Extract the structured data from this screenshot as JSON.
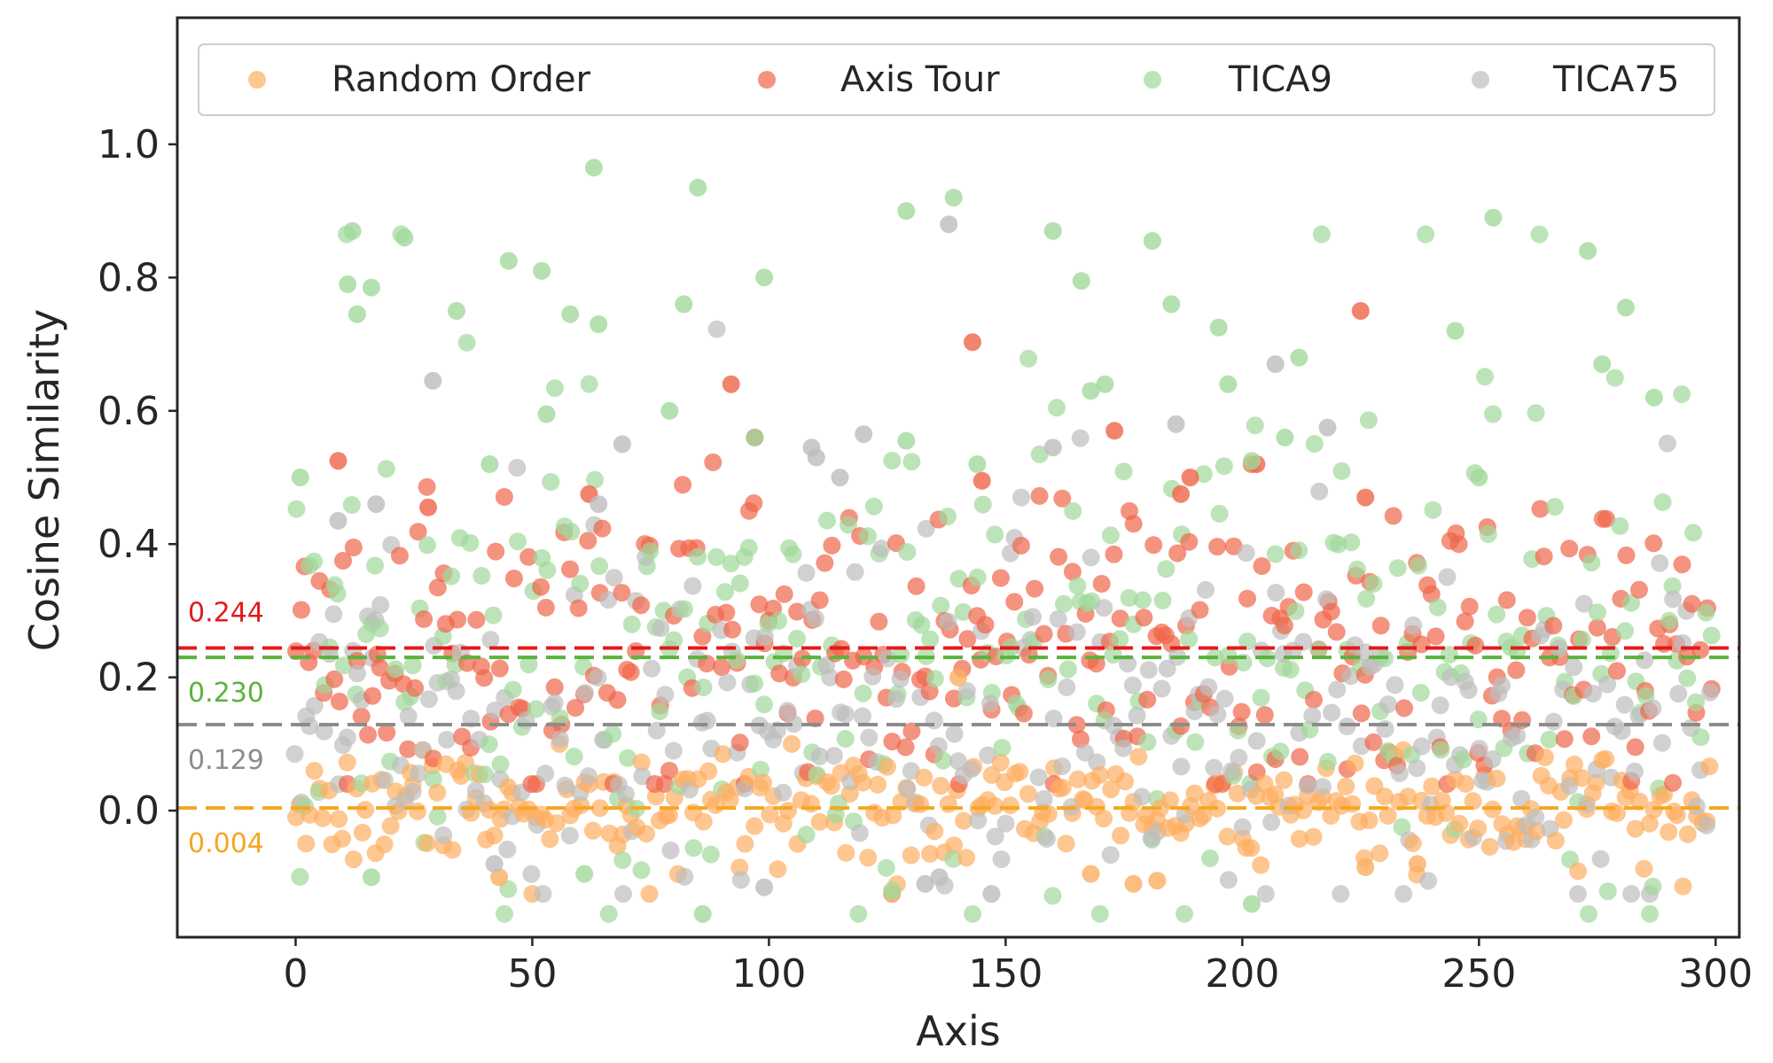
{
  "chart_data": {
    "type": "scatter",
    "xlabel": "Axis",
    "ylabel": "Cosine Similarity",
    "xlim": [
      -25,
      305
    ],
    "ylim": [
      -0.19,
      1.19
    ],
    "x_ticks": [
      0,
      50,
      100,
      150,
      200,
      250,
      300
    ],
    "x_tick_labels": [
      "0",
      "50",
      "100",
      "150",
      "200",
      "250",
      "300"
    ],
    "y_ticks": [
      0.0,
      0.2,
      0.4,
      0.6,
      0.8,
      1.0
    ],
    "y_tick_labels": [
      "0.0",
      "0.2",
      "0.4",
      "0.6",
      "0.8",
      "1.0"
    ],
    "grid": false,
    "legend_position": "top",
    "n_points_per_series": 300,
    "series": [
      {
        "name": "Random Order",
        "color": "#fdae61",
        "mean_label": "0.004",
        "mean": 0.004,
        "spread": {
          "min": -0.125,
          "max": 0.2
        },
        "highlight_points": [
          [
            140,
            0.2
          ],
          [
            126,
            -0.125
          ],
          [
            177,
            -0.11
          ],
          [
            182,
            -0.105
          ],
          [
            43,
            -0.1
          ],
          [
            226,
            -0.085
          ],
          [
            168,
            -0.095
          ],
          [
            237,
            -0.08
          ]
        ]
      },
      {
        "name": "Axis Tour",
        "color": "#ef6548",
        "mean_label": "0.244",
        "mean": 0.244,
        "spread": {
          "min": 0.04,
          "max": 0.75
        },
        "highlight_points": [
          [
            225,
            0.75
          ],
          [
            143,
            0.703
          ],
          [
            92,
            0.64
          ],
          [
            173,
            0.57
          ],
          [
            97,
            0.56
          ],
          [
            9,
            0.525
          ],
          [
            203,
            0.52
          ],
          [
            145,
            0.495
          ],
          [
            189,
            0.5
          ],
          [
            62,
            0.475
          ],
          [
            187,
            0.475
          ],
          [
            226,
            0.47
          ],
          [
            28,
            0.455
          ]
        ]
      },
      {
        "name": "TICA9",
        "color": "#a1d99b",
        "mean_label": "0.230",
        "mean": 0.23,
        "spread": {
          "min": -0.155,
          "max": 0.965
        },
        "highlight_points": [
          [
            63,
            0.965
          ],
          [
            85,
            0.935
          ],
          [
            139,
            0.92
          ],
          [
            129,
            0.9
          ],
          [
            253,
            0.89
          ],
          [
            12,
            0.87
          ],
          [
            160,
            0.87
          ],
          [
            23,
            0.86
          ],
          [
            181,
            0.855
          ],
          [
            273,
            0.84
          ],
          [
            45,
            0.825
          ],
          [
            52,
            0.81
          ],
          [
            99,
            0.8
          ],
          [
            166,
            0.795
          ],
          [
            11,
            0.79
          ],
          [
            16,
            0.785
          ],
          [
            185,
            0.76
          ],
          [
            82,
            0.76
          ],
          [
            281,
            0.755
          ],
          [
            34,
            0.75
          ],
          [
            13,
            0.745
          ],
          [
            58,
            0.745
          ],
          [
            64,
            0.73
          ],
          [
            195,
            0.725
          ],
          [
            245,
            0.72
          ],
          [
            212,
            0.68
          ],
          [
            276,
            0.67
          ],
          [
            197,
            0.64
          ],
          [
            171,
            0.64
          ],
          [
            168,
            0.63
          ],
          [
            287,
            0.62
          ],
          [
            79,
            0.6
          ],
          [
            53,
            0.595
          ],
          [
            129,
            0.555
          ],
          [
            209,
            0.56
          ],
          [
            97,
            0.56
          ],
          [
            1,
            0.5
          ],
          [
            41,
            0.52
          ],
          [
            144,
            0.52
          ],
          [
            202,
            0.525
          ],
          [
            250,
            0.5
          ],
          [
            86,
            -0.155
          ],
          [
            202,
            -0.14
          ],
          [
            126,
            -0.12
          ],
          [
            16,
            -0.1
          ],
          [
            61,
            -0.095
          ]
        ]
      },
      {
        "name": "TICA75",
        "color": "#bdbdbd",
        "mean_label": "0.129",
        "mean": 0.129,
        "spread": {
          "min": -0.125,
          "max": 0.88
        },
        "highlight_points": [
          [
            138,
            0.88
          ],
          [
            207,
            0.67
          ],
          [
            29,
            0.645
          ],
          [
            186,
            0.58
          ],
          [
            218,
            0.575
          ],
          [
            120,
            0.565
          ],
          [
            160,
            0.545
          ],
          [
            69,
            0.55
          ],
          [
            109,
            0.545
          ],
          [
            110,
            0.53
          ],
          [
            115,
            0.5
          ],
          [
            17,
            0.46
          ],
          [
            64,
            0.46
          ],
          [
            9,
            0.435
          ],
          [
            147,
            -0.125
          ],
          [
            136,
            -0.1
          ],
          [
            99,
            -0.115
          ],
          [
            133,
            -0.11
          ],
          [
            42,
            -0.08
          ]
        ]
      }
    ]
  }
}
